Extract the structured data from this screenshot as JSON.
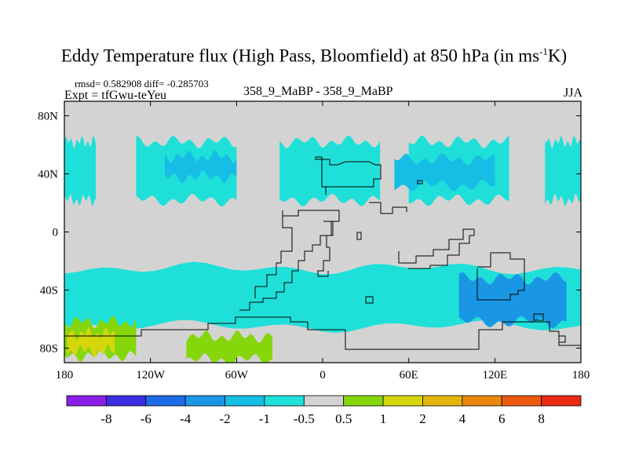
{
  "title_main": "Eddy Temperature flux (High Pass, Bloomfield) at 850 hPa (in ms",
  "title_sup": "-1",
  "title_end": "K)",
  "stats": "rmsd= 0.582908 diff= -0.285703",
  "expt": "Expt = tfGwu-teYeu",
  "center_label": "358_9_MaBP - 358_9_MaBP",
  "season": "JJA",
  "colors": {
    "background": "#d3d3d3",
    "cyan": "#1fe0d9",
    "lightblue": "#16bde4",
    "blue": "#1a97e4",
    "green": "#85d70c",
    "yellow": "#d6d60d",
    "coast": "#000000"
  },
  "chart_data": {
    "type": "heatmap",
    "title": "Eddy Temperature flux (High Pass, Bloomfield) at 850 hPa (in ms-1K)",
    "x_ticks": [
      {
        "value": -180,
        "label": "180"
      },
      {
        "value": -120,
        "label": "120W"
      },
      {
        "value": -60,
        "label": "60W"
      },
      {
        "value": 0,
        "label": "0"
      },
      {
        "value": 60,
        "label": "60E"
      },
      {
        "value": 120,
        "label": "120E"
      },
      {
        "value": 180,
        "label": "180"
      }
    ],
    "y_ticks": [
      {
        "value": 80,
        "label": "80N"
      },
      {
        "value": 40,
        "label": "40N"
      },
      {
        "value": 0,
        "label": "0"
      },
      {
        "value": -40,
        "label": "40S"
      },
      {
        "value": -80,
        "label": "80S"
      }
    ],
    "xlim": [
      -180,
      180
    ],
    "ylim": [
      -90,
      90
    ],
    "colorbar": {
      "levels": [
        "-8",
        "-6",
        "-4",
        "-2",
        "-1",
        "-0.5",
        "0.5",
        "1",
        "2",
        "4",
        "6",
        "8"
      ],
      "colors": [
        "#8a1ee6",
        "#3b2fdf",
        "#1c6ae6",
        "#1a97e4",
        "#16bde4",
        "#1fe0d9",
        "#d3d3d3",
        "#85d70c",
        "#d6d60d",
        "#e4b50e",
        "#e9870e",
        "#ec5a10",
        "#ea2b14"
      ]
    },
    "regions": [
      {
        "name": "nh-midlat-band",
        "level": "-1..-0.5",
        "color": "cyan",
        "lon": [
          [
            -180,
            -158
          ],
          [
            -130,
            -60
          ],
          [
            -30,
            40
          ],
          [
            60,
            130
          ],
          [
            155,
            180
          ]
        ],
        "lat_range": [
          22,
          62
        ]
      },
      {
        "name": "nh-north-pacific-core",
        "level": "-2..-1",
        "color": "lightblue",
        "lon_range": [
          -110,
          -60
        ],
        "lat_range": [
          38,
          52
        ]
      },
      {
        "name": "nh-east-asia-core",
        "level": "-2..-1",
        "color": "lightblue",
        "lon_range": [
          50,
          120
        ],
        "lat_range": [
          32,
          50
        ]
      },
      {
        "name": "sh-midlat-band",
        "level": "-1..-0.5",
        "color": "cyan",
        "lon_range": [
          -180,
          180
        ],
        "lat_range": [
          -65,
          -25
        ]
      },
      {
        "name": "sh-indian-ocean-core",
        "level": "-4..-2",
        "color": "blue",
        "lon_range": [
          95,
          170
        ],
        "lat_range": [
          -62,
          -32
        ]
      },
      {
        "name": "sh-polar-green",
        "level": "0.5..1",
        "color": "green",
        "lon_range": [
          -180,
          -130
        ],
        "lat_range": [
          -85,
          -62
        ]
      },
      {
        "name": "sh-polar-yellow",
        "level": "1..2",
        "color": "yellow",
        "lon_range": [
          -178,
          -145
        ],
        "lat_range": [
          -82,
          -70
        ]
      },
      {
        "name": "sh-ross-green",
        "level": "0.5..1",
        "color": "green",
        "lon_range": [
          -95,
          -35
        ],
        "lat_range": [
          -88,
          -72
        ]
      }
    ]
  }
}
